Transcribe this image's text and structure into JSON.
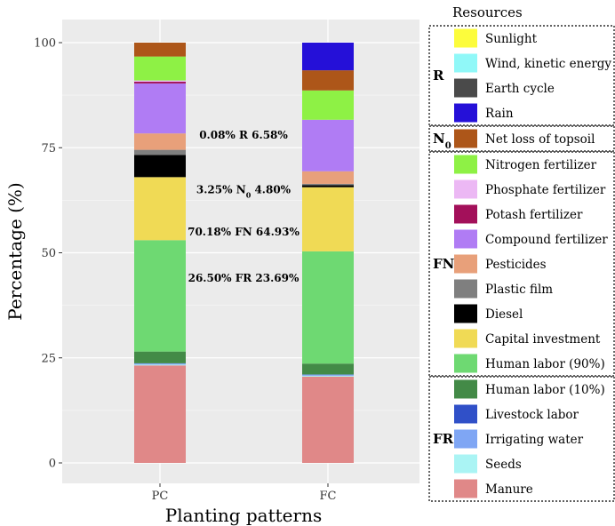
{
  "chart_data": {
    "type": "bar",
    "stacked": true,
    "xlabel": "Planting patterns",
    "ylabel": "Percentage (%)",
    "ylim": [
      0,
      100
    ],
    "yticks": [
      0,
      25,
      50,
      75,
      100
    ],
    "categories": [
      "PC",
      "FC"
    ],
    "grid": true,
    "legend": {
      "title": "Resources",
      "placement": "right",
      "groups": [
        {
          "label": "R",
          "items": [
            "Sunlight",
            "Wind, kinetic energy",
            "Earth cycle",
            "Rain"
          ]
        },
        {
          "label": "N",
          "label_sub": "0",
          "items": [
            "Net loss of topsoil"
          ]
        },
        {
          "label": "FN",
          "items": [
            "Nitrogen fertilizer",
            "Phosphate fertilizer",
            "Potash fertilizer",
            "Compound fertilizer",
            "Pesticides",
            "Plastic film",
            "Diesel",
            "Capital investment",
            "Human labor (90%)"
          ]
        },
        {
          "label": "FR",
          "items": [
            "Human labor (10%)",
            "Livestock labor",
            "Irrigating water",
            "Seeds",
            "Manure"
          ]
        }
      ]
    },
    "series": [
      {
        "name": "Manure",
        "color": "#E08888",
        "values": [
          23.2,
          20.6
        ]
      },
      {
        "name": "Seeds",
        "color": "#AAF4F4",
        "values": [
          0.2,
          0.2
        ]
      },
      {
        "name": "Irrigating water",
        "color": "#7FA6F4",
        "values": [
          0.3,
          0.3
        ]
      },
      {
        "name": "Livestock labor",
        "color": "#3050C8",
        "values": [
          0.0,
          0.0
        ]
      },
      {
        "name": "Human labor (10%)",
        "color": "#438A47",
        "values": [
          2.8,
          2.6
        ]
      },
      {
        "name": "Human labor (90%)",
        "color": "#6ED972",
        "values": [
          26.5,
          26.8
        ]
      },
      {
        "name": "Capital investment",
        "color": "#F0DA55",
        "values": [
          15.0,
          15.3
        ]
      },
      {
        "name": "Diesel",
        "color": "#000000",
        "values": [
          5.3,
          0.5
        ]
      },
      {
        "name": "Plastic film",
        "color": "#7F7F7F",
        "values": [
          1.2,
          0.3
        ]
      },
      {
        "name": "Pesticides",
        "color": "#E8A07A",
        "values": [
          3.9,
          3.0
        ]
      },
      {
        "name": "Compound fertilizer",
        "color": "#B07CF4",
        "values": [
          11.9,
          12.3
        ]
      },
      {
        "name": "Potash fertilizer",
        "color": "#A3105A",
        "values": [
          0.4,
          0.0
        ]
      },
      {
        "name": "Phosphate fertilizer",
        "color": "#ECB8F4",
        "values": [
          0.3,
          0.0
        ]
      },
      {
        "name": "Nitrogen fertilizer",
        "color": "#8EF145",
        "values": [
          5.7,
          7.0
        ]
      },
      {
        "name": "Net loss of topsoil",
        "color": "#AD5619",
        "values": [
          3.3,
          4.8
        ]
      },
      {
        "name": "Rain",
        "color": "#2510D8",
        "values": [
          0.0,
          6.6
        ]
      },
      {
        "name": "Earth cycle",
        "color": "#4A4A4A",
        "values": [
          0.0,
          0.0
        ]
      },
      {
        "name": "Wind, kinetic energy",
        "color": "#90F8F8",
        "values": [
          0.0,
          0.0
        ]
      },
      {
        "name": "Sunlight",
        "color": "#FCFC3C",
        "values": [
          0.0,
          0.0
        ]
      }
    ],
    "annotations": [
      {
        "left": "0.08%",
        "group": "R",
        "right": "6.58%",
        "y": 78
      },
      {
        "left": "3.25%",
        "group": "N",
        "group_sub": "0",
        "right": "4.80%",
        "y": 65
      },
      {
        "left": "70.18%",
        "group": "FN",
        "right": "64.93%",
        "y": 55
      },
      {
        "left": "26.50%",
        "group": "FR",
        "right": "23.69%",
        "y": 44
      }
    ]
  }
}
